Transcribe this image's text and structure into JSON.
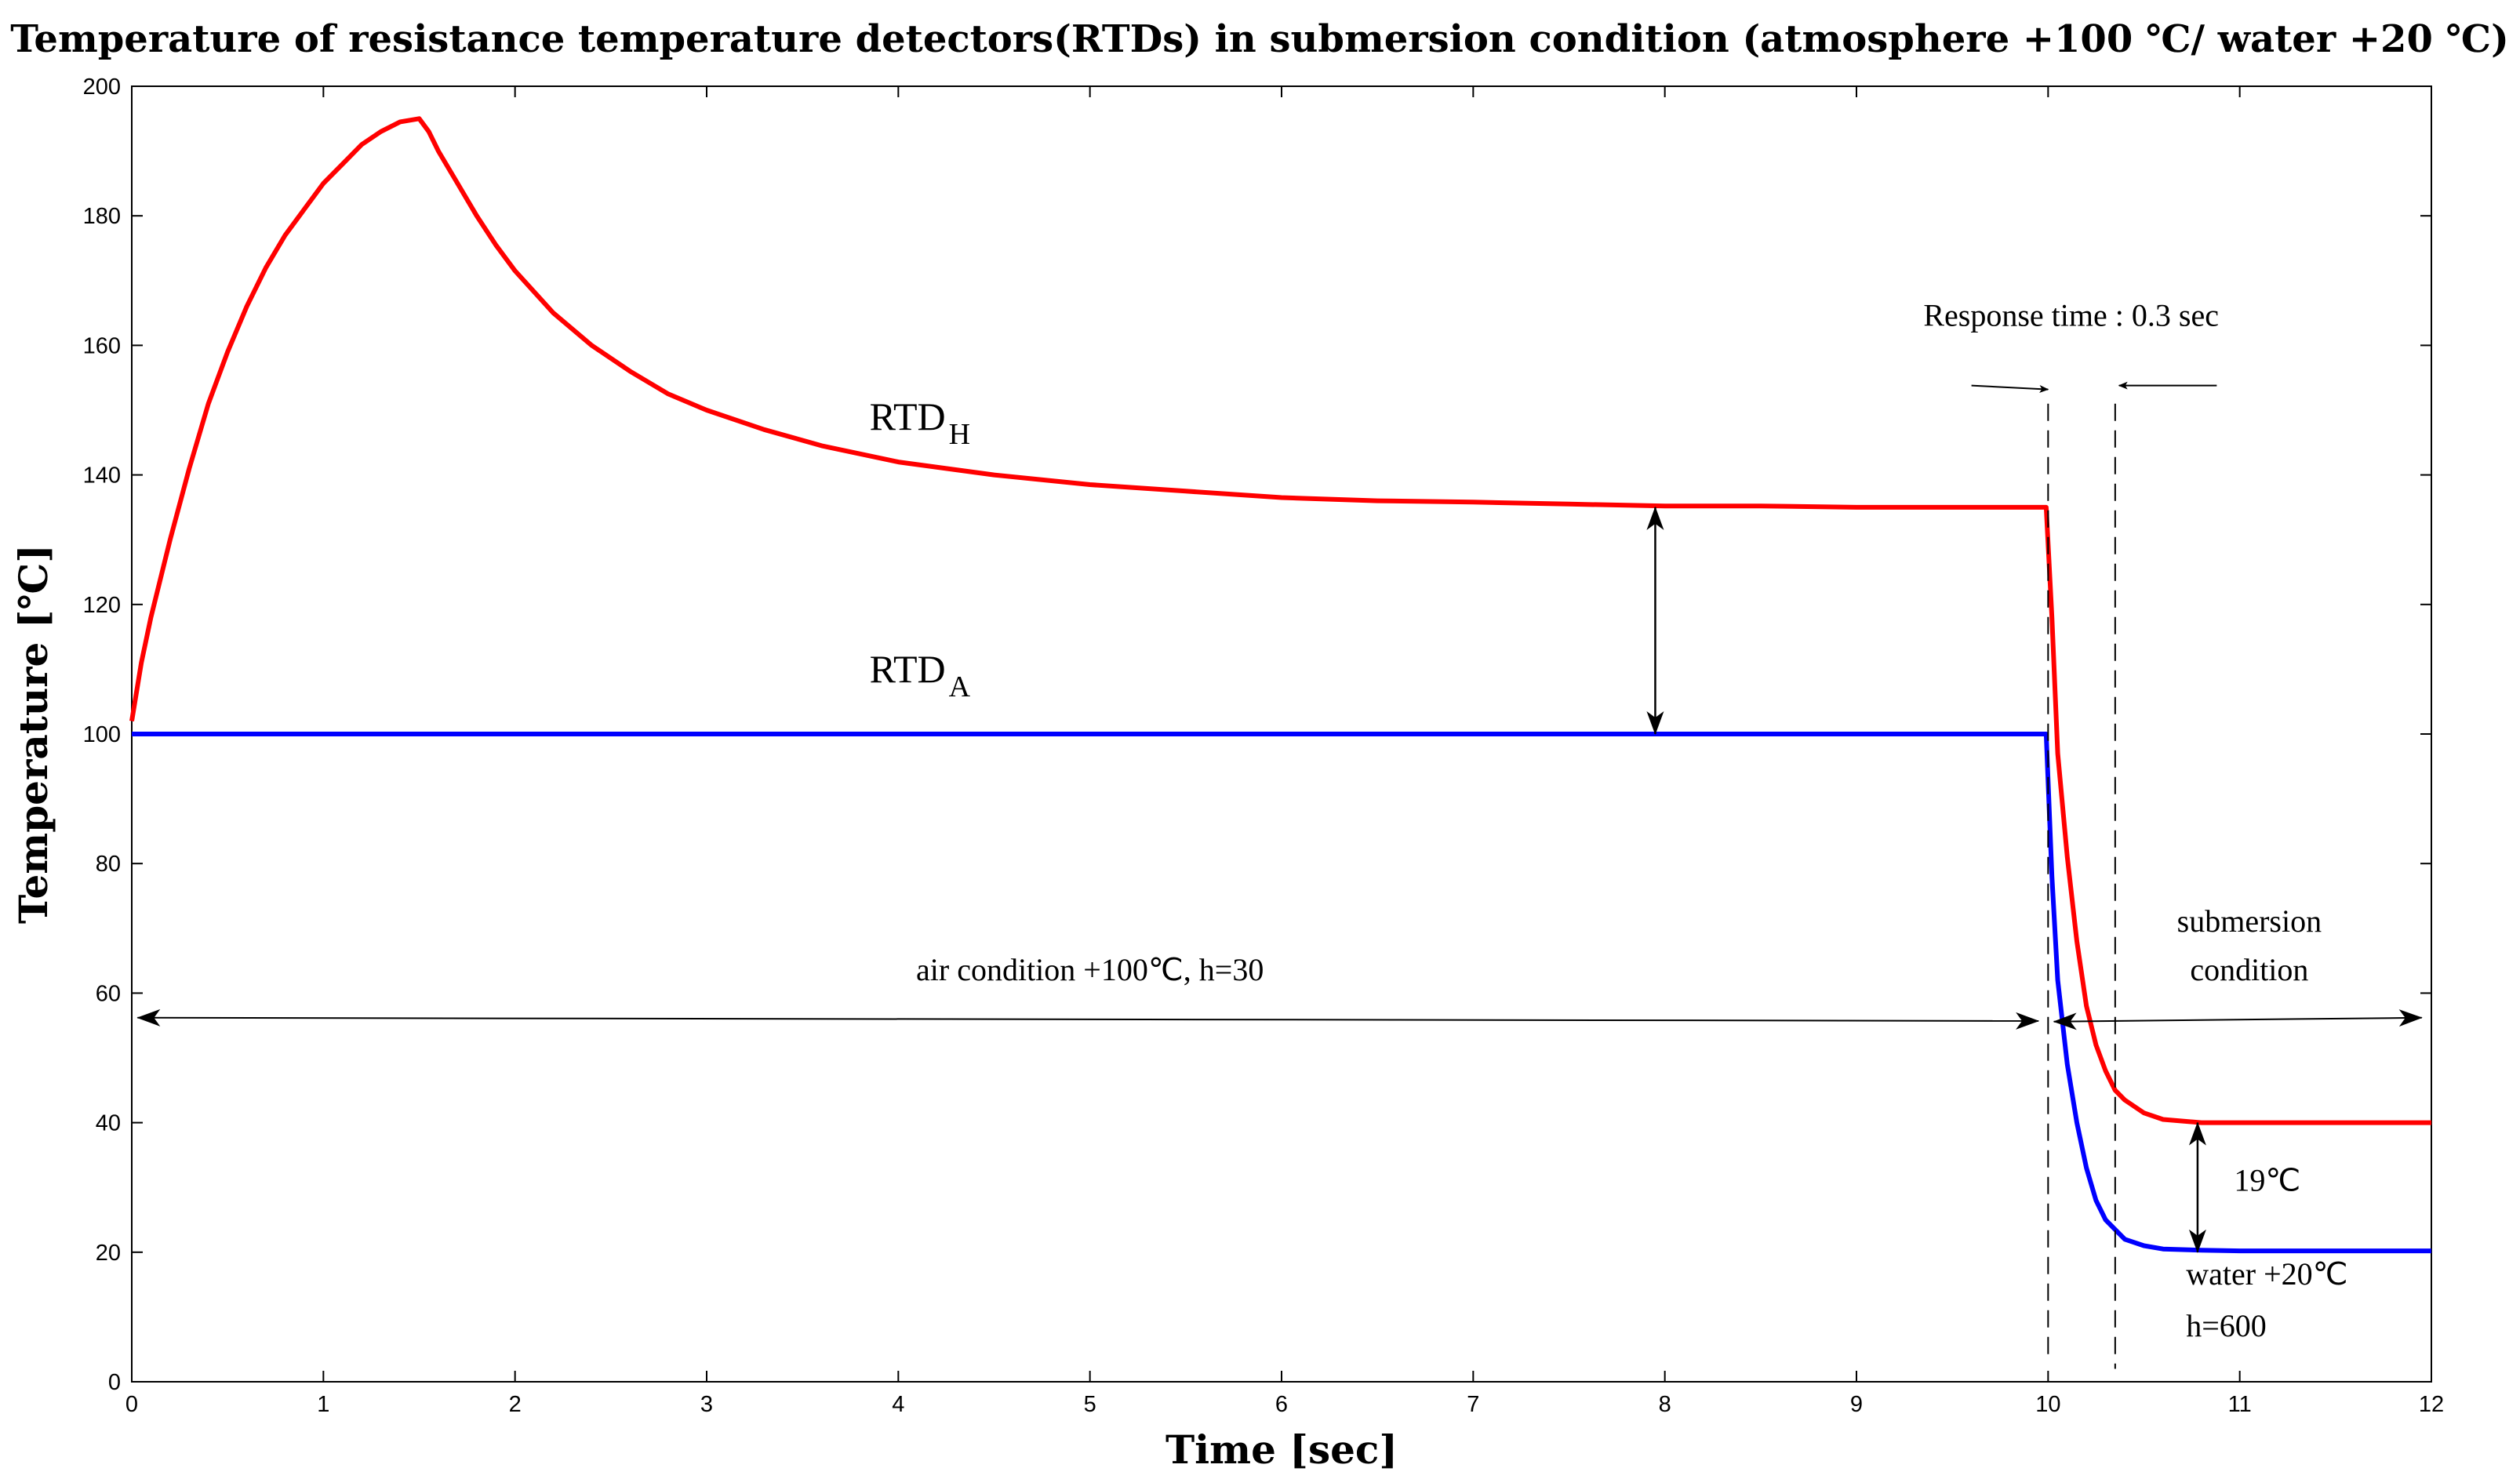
{
  "chart_data": {
    "type": "line",
    "title": "Temperature of resistance temperature detectors(RTDs) in submersion condition (atmosphere +100 ℃/ water +20 ℃)",
    "xlabel": "Time [sec]",
    "ylabel": "Temperature [℃]",
    "xlim": [
      0,
      12
    ],
    "ylim": [
      0,
      200
    ],
    "xticks": [
      0,
      1,
      2,
      3,
      4,
      5,
      6,
      7,
      8,
      9,
      10,
      11,
      12
    ],
    "yticks": [
      0,
      20,
      40,
      60,
      80,
      100,
      120,
      140,
      160,
      180,
      200
    ],
    "grid": false,
    "series": [
      {
        "name": "RTD_H",
        "color": "#ff0000",
        "x": [
          0,
          0.05,
          0.1,
          0.2,
          0.3,
          0.4,
          0.5,
          0.6,
          0.7,
          0.8,
          0.9,
          1.0,
          1.1,
          1.2,
          1.3,
          1.4,
          1.5,
          1.55,
          1.6,
          1.7,
          1.8,
          1.9,
          2.0,
          2.2,
          2.4,
          2.6,
          2.8,
          3.0,
          3.3,
          3.6,
          4.0,
          4.5,
          5.0,
          5.5,
          6.0,
          6.5,
          7.0,
          7.5,
          8.0,
          8.5,
          9.0,
          9.5,
          9.99,
          10.02,
          10.05,
          10.1,
          10.15,
          10.2,
          10.25,
          10.3,
          10.35,
          10.4,
          10.5,
          10.6,
          10.8,
          11.0,
          11.5,
          12.0
        ],
        "y": [
          102,
          111,
          118,
          130,
          141,
          151,
          159,
          166,
          172,
          177,
          181,
          185,
          188,
          191,
          193,
          194.5,
          195,
          193,
          190,
          185,
          180,
          175.5,
          171.5,
          165,
          160,
          156,
          152.5,
          150,
          147,
          144.5,
          142,
          140,
          138.5,
          137.5,
          136.5,
          136,
          135.8,
          135.5,
          135.2,
          135.2,
          135,
          135,
          135,
          118,
          97,
          81,
          68,
          58,
          52,
          48,
          45,
          43.5,
          41.5,
          40.5,
          40,
          40,
          40,
          40
        ]
      },
      {
        "name": "RTD_A",
        "color": "#0000ff",
        "x": [
          0,
          0.5,
          1,
          2,
          3,
          4,
          5,
          6,
          7,
          8,
          9,
          9.99,
          10.02,
          10.05,
          10.1,
          10.15,
          10.2,
          10.25,
          10.3,
          10.35,
          10.4,
          10.5,
          10.6,
          10.8,
          11.0,
          11.5,
          12.0
        ],
        "y": [
          100,
          100,
          100,
          100,
          100,
          100,
          100,
          100,
          100,
          100,
          100,
          100,
          78,
          62,
          49,
          40,
          33,
          28,
          25,
          23.5,
          22,
          21,
          20.5,
          20.3,
          20.2,
          20.2,
          20.2
        ]
      }
    ],
    "annotations": {
      "rtd_h_label": {
        "main": "RTD",
        "sub": "H"
      },
      "rtd_a_label": {
        "main": "RTD",
        "sub": "A"
      },
      "air_condition": "air condition +100℃, h=30",
      "submersion_line1": "submersion",
      "submersion_line2": "condition",
      "response_time": "Response time : 0.3 sec",
      "delta_label": "19℃",
      "water_line1": "water +20℃",
      "water_line2": "h=600"
    }
  }
}
